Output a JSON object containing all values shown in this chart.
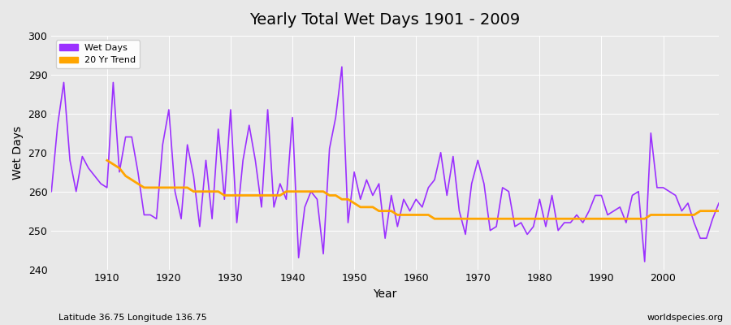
{
  "title": "Yearly Total Wet Days 1901 - 2009",
  "xlabel": "Year",
  "ylabel": "Wet Days",
  "footnote_left": "Latitude 36.75 Longitude 136.75",
  "footnote_right": "worldspecies.org",
  "legend_wet": "Wet Days",
  "legend_trend": "20 Yr Trend",
  "wet_color": "#9B30FF",
  "trend_color": "#FFA500",
  "bg_color": "#E8E8E8",
  "plot_bg_color": "#E8E8E8",
  "ylim": [
    240,
    300
  ],
  "xlim": [
    1901,
    2009
  ],
  "yticks": [
    240,
    250,
    260,
    270,
    280,
    290,
    300
  ],
  "xticks": [
    1910,
    1920,
    1930,
    1940,
    1950,
    1960,
    1970,
    1980,
    1990,
    2000
  ],
  "years": [
    1901,
    1902,
    1903,
    1904,
    1905,
    1906,
    1907,
    1908,
    1909,
    1910,
    1911,
    1912,
    1913,
    1914,
    1915,
    1916,
    1917,
    1918,
    1919,
    1920,
    1921,
    1922,
    1923,
    1924,
    1925,
    1926,
    1927,
    1928,
    1929,
    1930,
    1931,
    1932,
    1933,
    1934,
    1935,
    1936,
    1937,
    1938,
    1939,
    1940,
    1941,
    1942,
    1943,
    1944,
    1945,
    1946,
    1947,
    1948,
    1949,
    1950,
    1951,
    1952,
    1953,
    1954,
    1955,
    1956,
    1957,
    1958,
    1959,
    1960,
    1961,
    1962,
    1963,
    1964,
    1965,
    1966,
    1967,
    1968,
    1969,
    1970,
    1971,
    1972,
    1973,
    1974,
    1975,
    1976,
    1977,
    1978,
    1979,
    1980,
    1981,
    1982,
    1983,
    1984,
    1985,
    1986,
    1987,
    1988,
    1989,
    1990,
    1991,
    1992,
    1993,
    1994,
    1995,
    1996,
    1997,
    1998,
    1999,
    2000,
    2001,
    2002,
    2003,
    2004,
    2005,
    2006,
    2007,
    2008,
    2009
  ],
  "wet_days": [
    260,
    277,
    288,
    268,
    260,
    269,
    266,
    264,
    262,
    261,
    288,
    265,
    274,
    274,
    265,
    254,
    254,
    253,
    272,
    281,
    260,
    253,
    272,
    264,
    251,
    268,
    253,
    276,
    258,
    281,
    252,
    268,
    277,
    268,
    256,
    281,
    256,
    262,
    258,
    279,
    243,
    256,
    260,
    258,
    244,
    271,
    279,
    292,
    252,
    265,
    258,
    263,
    259,
    262,
    248,
    259,
    251,
    258,
    255,
    258,
    256,
    261,
    263,
    270,
    259,
    269,
    255,
    249,
    262,
    268,
    262,
    250,
    251,
    261,
    260,
    251,
    252,
    249,
    251,
    258,
    251,
    259,
    250,
    252,
    252,
    254,
    252,
    255,
    259,
    259,
    254,
    255,
    256,
    252,
    259,
    260,
    242,
    275,
    261,
    261,
    260,
    259,
    255,
    257,
    252,
    248,
    248,
    253,
    257
  ],
  "trend_years": [
    1910,
    1911,
    1912,
    1913,
    1914,
    1915,
    1916,
    1917,
    1918,
    1919,
    1920,
    1921,
    1922,
    1923,
    1924,
    1925,
    1926,
    1927,
    1928,
    1929,
    1930,
    1931,
    1932,
    1933,
    1934,
    1935,
    1936,
    1937,
    1938,
    1939,
    1940,
    1941,
    1942,
    1943,
    1944,
    1945,
    1946,
    1947,
    1948,
    1949,
    1950,
    1951,
    1952,
    1953,
    1954,
    1955,
    1956,
    1957,
    1958,
    1959,
    1960,
    1961,
    1962,
    1963,
    1964,
    1965,
    1966,
    1967,
    1968,
    1969,
    1970,
    1971,
    1972,
    1973,
    1974,
    1975,
    1976,
    1977,
    1978,
    1979,
    1980,
    1981,
    1982,
    1983,
    1984,
    1985,
    1986,
    1987,
    1988,
    1989,
    1990,
    1991,
    1992,
    1993,
    1994,
    1995,
    1996,
    1997,
    1998,
    1999,
    2000,
    2001,
    2002,
    2003,
    2004,
    2005,
    2006,
    2007,
    2008,
    2009
  ],
  "trend_vals": [
    268,
    267,
    266,
    264,
    263,
    262,
    261,
    261,
    261,
    261,
    261,
    261,
    261,
    261,
    260,
    260,
    260,
    260,
    260,
    259,
    259,
    259,
    259,
    259,
    259,
    259,
    259,
    259,
    259,
    260,
    260,
    260,
    260,
    260,
    260,
    260,
    259,
    259,
    258,
    258,
    257,
    256,
    256,
    256,
    255,
    255,
    255,
    254,
    254,
    254,
    254,
    254,
    254,
    253,
    253,
    253,
    253,
    253,
    253,
    253,
    253,
    253,
    253,
    253,
    253,
    253,
    253,
    253,
    253,
    253,
    253,
    253,
    253,
    253,
    253,
    253,
    253,
    253,
    253,
    253,
    253,
    253,
    253,
    253,
    253,
    253,
    253,
    253,
    254,
    254,
    254,
    254,
    254,
    254,
    254,
    254,
    255,
    255,
    255,
    255
  ]
}
